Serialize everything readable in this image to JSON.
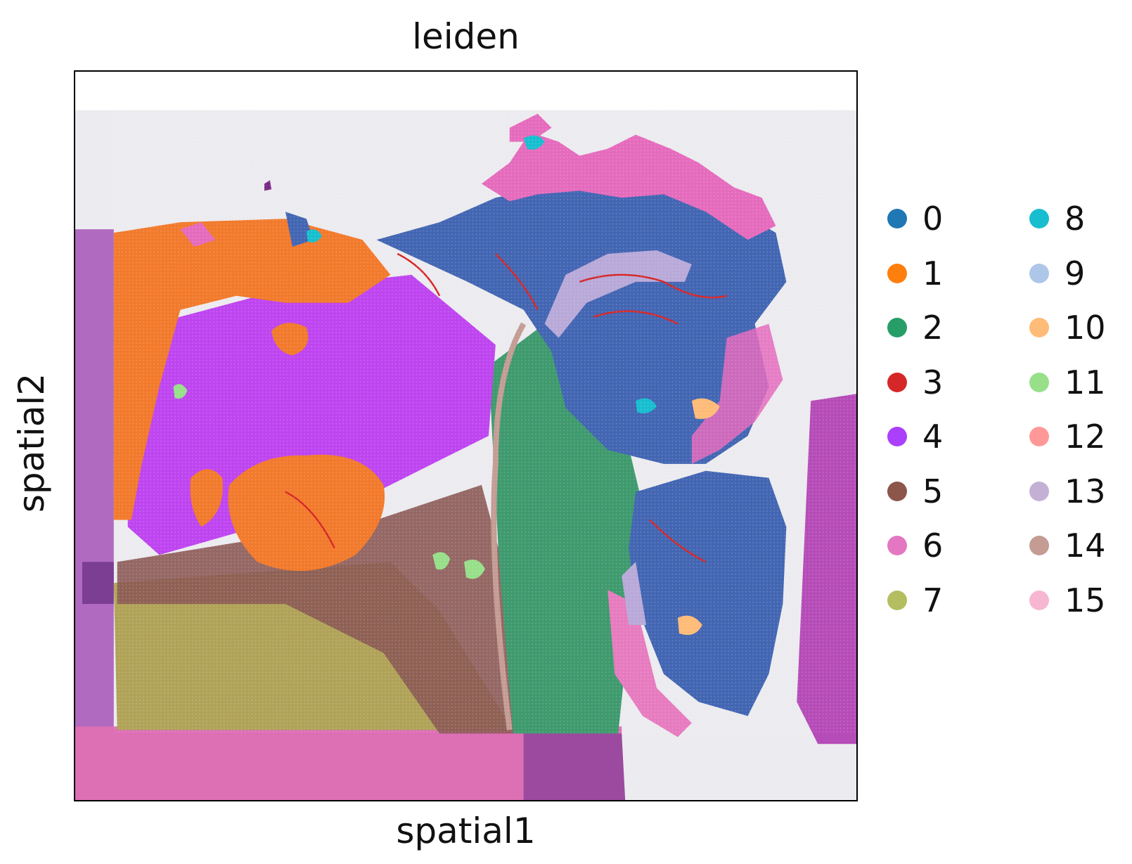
{
  "chart_data": {
    "type": "scatter",
    "title": "leiden",
    "xlabel": "spatial1",
    "ylabel": "spatial2",
    "xticks": [],
    "yticks": [],
    "background_image": "H&E tissue section",
    "legend": {
      "placement": "right",
      "columns": 2,
      "entries": [
        {
          "label": "0",
          "color": "#1f77b4"
        },
        {
          "label": "1",
          "color": "#ff7f0e"
        },
        {
          "label": "2",
          "color": "#279e68"
        },
        {
          "label": "3",
          "color": "#d62728"
        },
        {
          "label": "4",
          "color": "#aa40fc"
        },
        {
          "label": "5",
          "color": "#8c564b"
        },
        {
          "label": "6",
          "color": "#e377c2"
        },
        {
          "label": "7",
          "color": "#b5bd61"
        },
        {
          "label": "8",
          "color": "#17becf"
        },
        {
          "label": "9",
          "color": "#aec7e8"
        },
        {
          "label": "10",
          "color": "#ffbb78"
        },
        {
          "label": "11",
          "color": "#98df8a"
        },
        {
          "label": "12",
          "color": "#ff9896"
        },
        {
          "label": "13",
          "color": "#c5b0d5"
        },
        {
          "label": "14",
          "color": "#c49c94"
        },
        {
          "label": "15",
          "color": "#f7b6d2"
        }
      ]
    }
  }
}
